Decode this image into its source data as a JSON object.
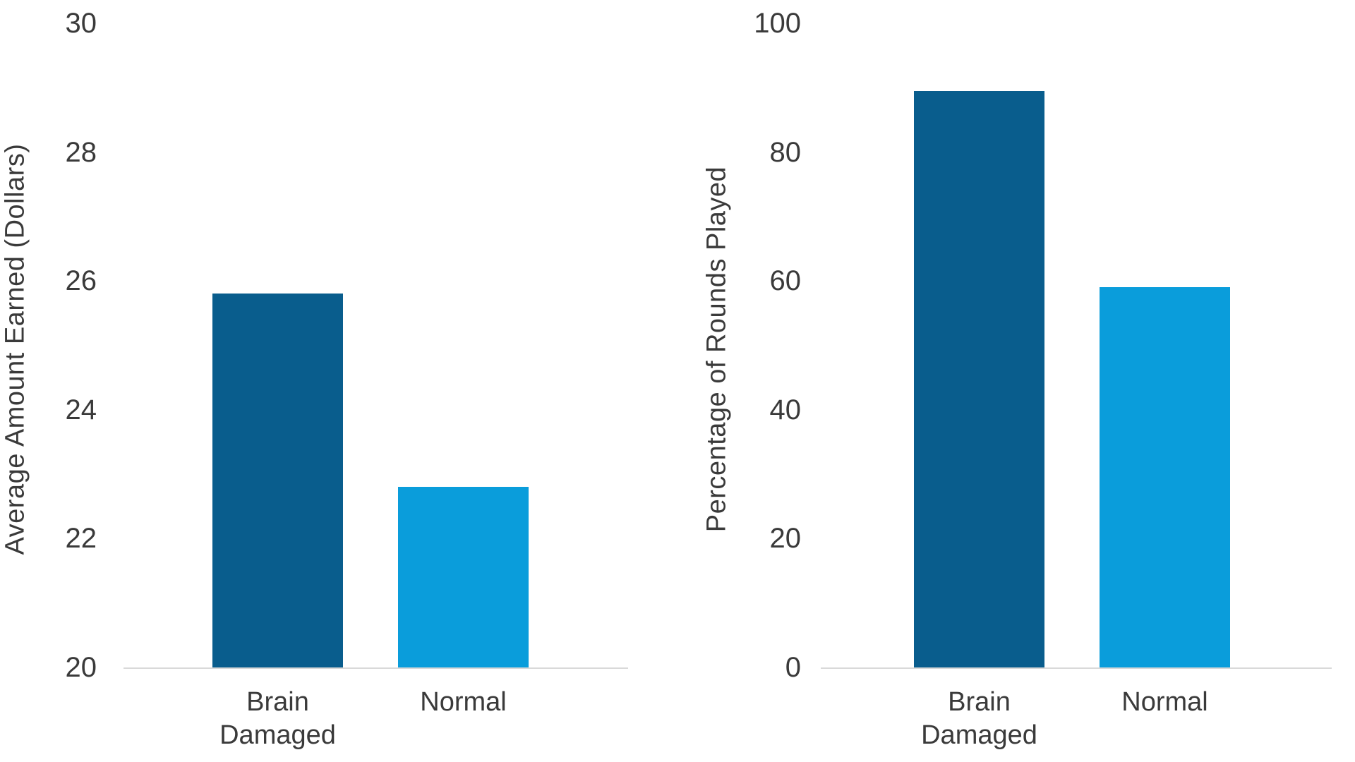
{
  "page": {
    "background": "#FFFFFF"
  },
  "colors": {
    "bar_dark": "#095D8D",
    "bar_light": "#0A9DDB",
    "axis_line": "#D9D9D9",
    "text": "#3A3A3A"
  },
  "chart_data": [
    {
      "type": "bar",
      "title": "",
      "ylabel": "Average Amount Earned (Dollars)",
      "xlabel": "",
      "categories": [
        "Brain\nDamaged",
        "Normal"
      ],
      "values": [
        25.8,
        22.8
      ],
      "ylim": [
        20,
        30
      ],
      "yticks": [
        30,
        28,
        26,
        24,
        22,
        20
      ],
      "grid": false,
      "legend_position": "none",
      "bar_colors": [
        "#095D8D",
        "#0A9DDB"
      ]
    },
    {
      "type": "bar",
      "title": "",
      "ylabel": "Percentage of Rounds Played",
      "xlabel": "",
      "categories": [
        "Brain\nDamaged",
        "Normal"
      ],
      "values": [
        89.5,
        59
      ],
      "ylim": [
        0,
        100
      ],
      "yticks": [
        100,
        80,
        60,
        40,
        20,
        0
      ],
      "grid": false,
      "legend_position": "none",
      "bar_colors": [
        "#095D8D",
        "#0A9DDB"
      ]
    }
  ]
}
